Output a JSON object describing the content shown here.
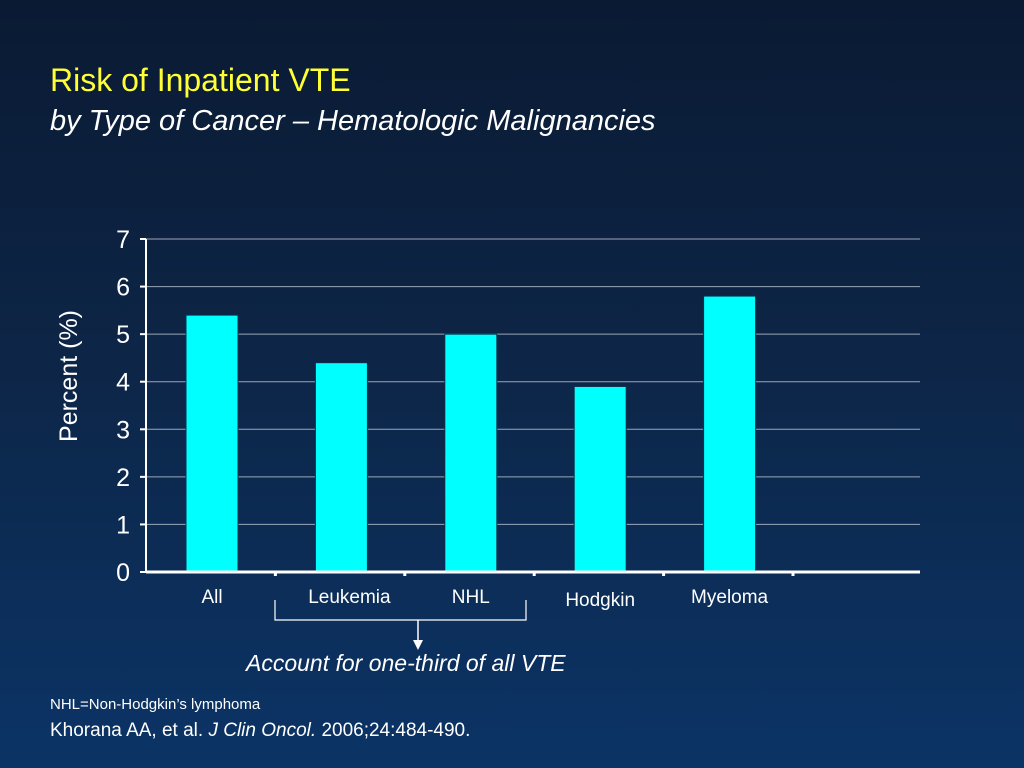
{
  "slide": {
    "title": "Risk of Inpatient VTE",
    "subtitle": "by Type of Cancer – Hematologic Malignancies",
    "note": "Account for one-third of all VTE",
    "footnote": "NHL=Non-Hodgkin’s lymphoma",
    "citation": {
      "authors": "Khorana AA, et al.",
      "journal": "J Clin Oncol.",
      "details": "2006;24:484-490."
    }
  },
  "colors": {
    "bar": "#00ffff",
    "title": "#ffff33",
    "text": "#ffffff",
    "grid": "#9aa7b8"
  },
  "chart_data": {
    "type": "bar",
    "categories": [
      "All",
      "Leukemia",
      "NHL",
      "Hodgkin",
      "Myeloma"
    ],
    "values": [
      5.4,
      4.4,
      5.0,
      3.9,
      5.8
    ],
    "ylabel": "Percent (%)",
    "xlabel": "",
    "ylim": [
      0,
      7
    ],
    "yticks": [
      0,
      1,
      2,
      3,
      4,
      5,
      6,
      7
    ],
    "grid": true,
    "bracket_categories": [
      "Leukemia",
      "NHL"
    ]
  }
}
